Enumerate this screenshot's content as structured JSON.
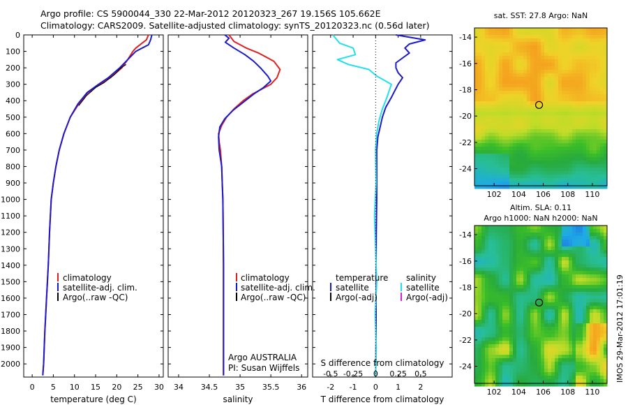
{
  "header": {
    "line1": "Argo profile: CS 5900044_330 22-Mar-2012 20120323_267 19.156S 105.662E",
    "line2": "Climatology: CARS2009. Satellite-adjusted climatology: synTS_20120323.nc (0.56d later)"
  },
  "depth_ticks": [
    0,
    100,
    200,
    300,
    400,
    500,
    600,
    700,
    800,
    900,
    1000,
    1100,
    1200,
    1300,
    1400,
    1500,
    1600,
    1700,
    1800,
    1900,
    2000
  ],
  "colors": {
    "climatology": "#e02020",
    "satellite": "#1a1acc",
    "argo": "#000000",
    "cyan": "#22e0e8",
    "magenta": "#d020d0"
  },
  "panels": {
    "temperature": {
      "xlabel": "temperature (deg C)",
      "xticks": [
        0,
        5,
        10,
        15,
        20,
        25,
        30
      ],
      "legend": [
        "climatology",
        "satellite-adj. clim.",
        "Argo(..raw -QC)"
      ]
    },
    "salinity": {
      "xlabel": "salinity",
      "xticks": [
        34,
        34.5,
        35,
        35.5,
        36
      ],
      "legend": [
        "climatology",
        "satellite-adj. clim.",
        "Argo(..raw -QC)"
      ],
      "note1": "Argo AUSTRALIA",
      "note2": "PI: Susan Wijffels"
    },
    "difference": {
      "xlabel": "T difference from climatology",
      "xticks": [
        -2,
        -1,
        0,
        1,
        2
      ],
      "s_label": "S difference from climatology",
      "s_ticks": [
        "-0.5",
        "-0.25",
        "0",
        "0.25",
        "0.5"
      ],
      "legend_temp_title": "temperature",
      "legend_sal_title": "salinity",
      "legend_temp": [
        "satellite",
        "Argo(-adj)"
      ],
      "legend_sal": [
        "satellite",
        "Argo(-adj)"
      ]
    }
  },
  "maps": {
    "sst_title": "sat. SST: 27.8  Argo: NaN",
    "sla_title1": "Altim. SLA: 0.11",
    "sla_title2": "Argo h1000: NaN h2000: NaN",
    "xticks": [
      102,
      104,
      106,
      108,
      110
    ],
    "yticks": [
      -14,
      -16,
      -18,
      -20,
      -22,
      -24
    ],
    "float_lon": 105.662,
    "float_lat": -19.156
  },
  "watermark": "IMOS 29-Mar-2012 17:01:19",
  "chart_data": [
    {
      "type": "line",
      "xlabel": "temperature (deg C)",
      "ylabel": "",
      "xlim": [
        -2,
        31
      ],
      "ylim": [
        2080,
        0
      ],
      "series": [
        {
          "name": "climatology",
          "points": [
            [
              27.5,
              0
            ],
            [
              27.0,
              30
            ],
            [
              25.5,
              60
            ],
            [
              24.5,
              80
            ],
            [
              23.8,
              100
            ],
            [
              22.6,
              150
            ],
            [
              21.2,
              200
            ],
            [
              18.5,
              260
            ],
            [
              16.0,
              300
            ],
            [
              13.2,
              350
            ],
            [
              11.0,
              420
            ],
            [
              9.0,
              500
            ],
            [
              7.5,
              600
            ],
            [
              6.4,
              700
            ],
            [
              5.6,
              800
            ],
            [
              5.0,
              900
            ],
            [
              4.5,
              1000
            ],
            [
              4.1,
              1200
            ],
            [
              3.8,
              1400
            ],
            [
              3.4,
              1600
            ],
            [
              3.0,
              1800
            ],
            [
              2.7,
              2000
            ],
            [
              2.5,
              2070
            ]
          ]
        },
        {
          "name": "satellite-adj. clim.",
          "points": [
            [
              28.3,
              0
            ],
            [
              28.0,
              30
            ],
            [
              27.5,
              60
            ],
            [
              26.0,
              80
            ],
            [
              24.5,
              100
            ],
            [
              22.6,
              150
            ],
            [
              20.7,
              200
            ],
            [
              18.0,
              260
            ],
            [
              15.7,
              300
            ],
            [
              13.0,
              350
            ],
            [
              10.8,
              420
            ],
            [
              9.0,
              500
            ],
            [
              7.5,
              600
            ],
            [
              6.4,
              700
            ],
            [
              5.6,
              800
            ],
            [
              5.0,
              900
            ],
            [
              4.5,
              1000
            ],
            [
              4.1,
              1200
            ],
            [
              3.8,
              1400
            ],
            [
              3.4,
              1600
            ],
            [
              3.0,
              1800
            ],
            [
              2.7,
              2000
            ],
            [
              2.5,
              2070
            ]
          ]
        },
        {
          "name": "Argo(..raw -QC)",
          "points": [
            [
              22.2,
              180
            ],
            [
              21.0,
              200
            ],
            [
              19.5,
              240
            ],
            [
              17.0,
              290
            ],
            [
              15.0,
              320
            ],
            [
              12.8,
              370
            ],
            [
              11.0,
              430
            ]
          ]
        }
      ]
    },
    {
      "type": "line",
      "xlabel": "salinity",
      "ylabel": "",
      "xlim": [
        33.83,
        36.1
      ],
      "ylim": [
        2080,
        0
      ],
      "series": [
        {
          "name": "climatology",
          "points": [
            [
              34.82,
              0
            ],
            [
              34.9,
              40
            ],
            [
              35.1,
              80
            ],
            [
              35.3,
              110
            ],
            [
              35.55,
              160
            ],
            [
              35.65,
              210
            ],
            [
              35.6,
              260
            ],
            [
              35.5,
              300
            ],
            [
              35.35,
              330
            ],
            [
              35.2,
              360
            ],
            [
              35.05,
              400
            ],
            [
              34.9,
              450
            ],
            [
              34.78,
              500
            ],
            [
              34.7,
              550
            ],
            [
              34.65,
              600
            ],
            [
              34.66,
              650
            ],
            [
              34.68,
              700
            ],
            [
              34.7,
              800
            ],
            [
              34.71,
              900
            ],
            [
              34.72,
              1000
            ],
            [
              34.725,
              1200
            ],
            [
              34.73,
              1400
            ],
            [
              34.73,
              1600
            ],
            [
              34.73,
              1800
            ],
            [
              34.73,
              2000
            ],
            [
              34.73,
              2070
            ]
          ]
        },
        {
          "name": "satellite-adj. clim.",
          "points": [
            [
              34.75,
              0
            ],
            [
              34.82,
              20
            ],
            [
              34.76,
              45
            ],
            [
              34.9,
              80
            ],
            [
              35.08,
              120
            ],
            [
              35.22,
              160
            ],
            [
              35.33,
              200
            ],
            [
              35.45,
              250
            ],
            [
              35.5,
              280
            ],
            [
              35.38,
              320
            ],
            [
              35.22,
              360
            ],
            [
              35.05,
              410
            ],
            [
              34.88,
              460
            ],
            [
              34.75,
              510
            ],
            [
              34.67,
              560
            ],
            [
              34.65,
              620
            ],
            [
              34.66,
              700
            ],
            [
              34.7,
              800
            ],
            [
              34.71,
              900
            ],
            [
              34.72,
              1000
            ],
            [
              34.725,
              1200
            ],
            [
              34.73,
              1400
            ],
            [
              34.73,
              1600
            ],
            [
              34.73,
              1800
            ],
            [
              34.73,
              2000
            ],
            [
              34.73,
              2070
            ]
          ]
        }
      ]
    },
    {
      "type": "line",
      "xlabel": "T difference from climatology",
      "ylabel": "",
      "xlim": [
        -2.8,
        3.4
      ],
      "ylim": [
        2080,
        0
      ],
      "series": [
        {
          "name": "temperature satellite",
          "points": [
            [
              0.9,
              0
            ],
            [
              2.2,
              30
            ],
            [
              1.5,
              55
            ],
            [
              1.3,
              80
            ],
            [
              1.5,
              110
            ],
            [
              1.2,
              140
            ],
            [
              0.9,
              170
            ],
            [
              0.9,
              200
            ],
            [
              1.0,
              230
            ],
            [
              1.2,
              260
            ],
            [
              1.0,
              300
            ],
            [
              0.85,
              340
            ],
            [
              0.7,
              380
            ],
            [
              0.45,
              440
            ],
            [
              0.3,
              500
            ],
            [
              0.2,
              560
            ],
            [
              0.1,
              620
            ],
            [
              0.05,
              700
            ],
            [
              0.05,
              800
            ],
            [
              0.05,
              1000
            ],
            [
              0.03,
              1200
            ],
            [
              0.02,
              1400
            ],
            [
              0.02,
              1600
            ],
            [
              0.02,
              1800
            ],
            [
              0.01,
              2000
            ],
            [
              0.0,
              2070
            ]
          ]
        },
        {
          "name": "salinity satellite",
          "points": [
            [
              -1.9,
              0
            ],
            [
              -1.6,
              50
            ],
            [
              -1.0,
              80
            ],
            [
              -0.9,
              120
            ],
            [
              -1.7,
              150
            ],
            [
              -1.2,
              180
            ],
            [
              -0.3,
              210
            ],
            [
              0.05,
              250
            ],
            [
              0.7,
              300
            ],
            [
              0.6,
              340
            ],
            [
              0.5,
              380
            ],
            [
              0.3,
              450
            ],
            [
              0.15,
              520
            ],
            [
              0.05,
              600
            ],
            [
              0.0,
              700
            ],
            [
              0.02,
              900
            ],
            [
              -0.05,
              1100
            ],
            [
              0.0,
              1300
            ],
            [
              0.05,
              1500
            ],
            [
              -0.02,
              1700
            ],
            [
              0.03,
              1900
            ],
            [
              0.0,
              2070
            ]
          ]
        }
      ]
    },
    {
      "type": "heatmap",
      "title": "sat. SST: 27.8  Argo: NaN",
      "xlim": [
        100.4,
        111.2
      ],
      "ylim": [
        -25.3,
        -13.3
      ]
    },
    {
      "type": "heatmap",
      "title": "Altim. SLA: 0.11 Argo h1000: NaN h2000: NaN",
      "xlim": [
        100.4,
        111.2
      ],
      "ylim": [
        -25.3,
        -13.3
      ]
    }
  ]
}
